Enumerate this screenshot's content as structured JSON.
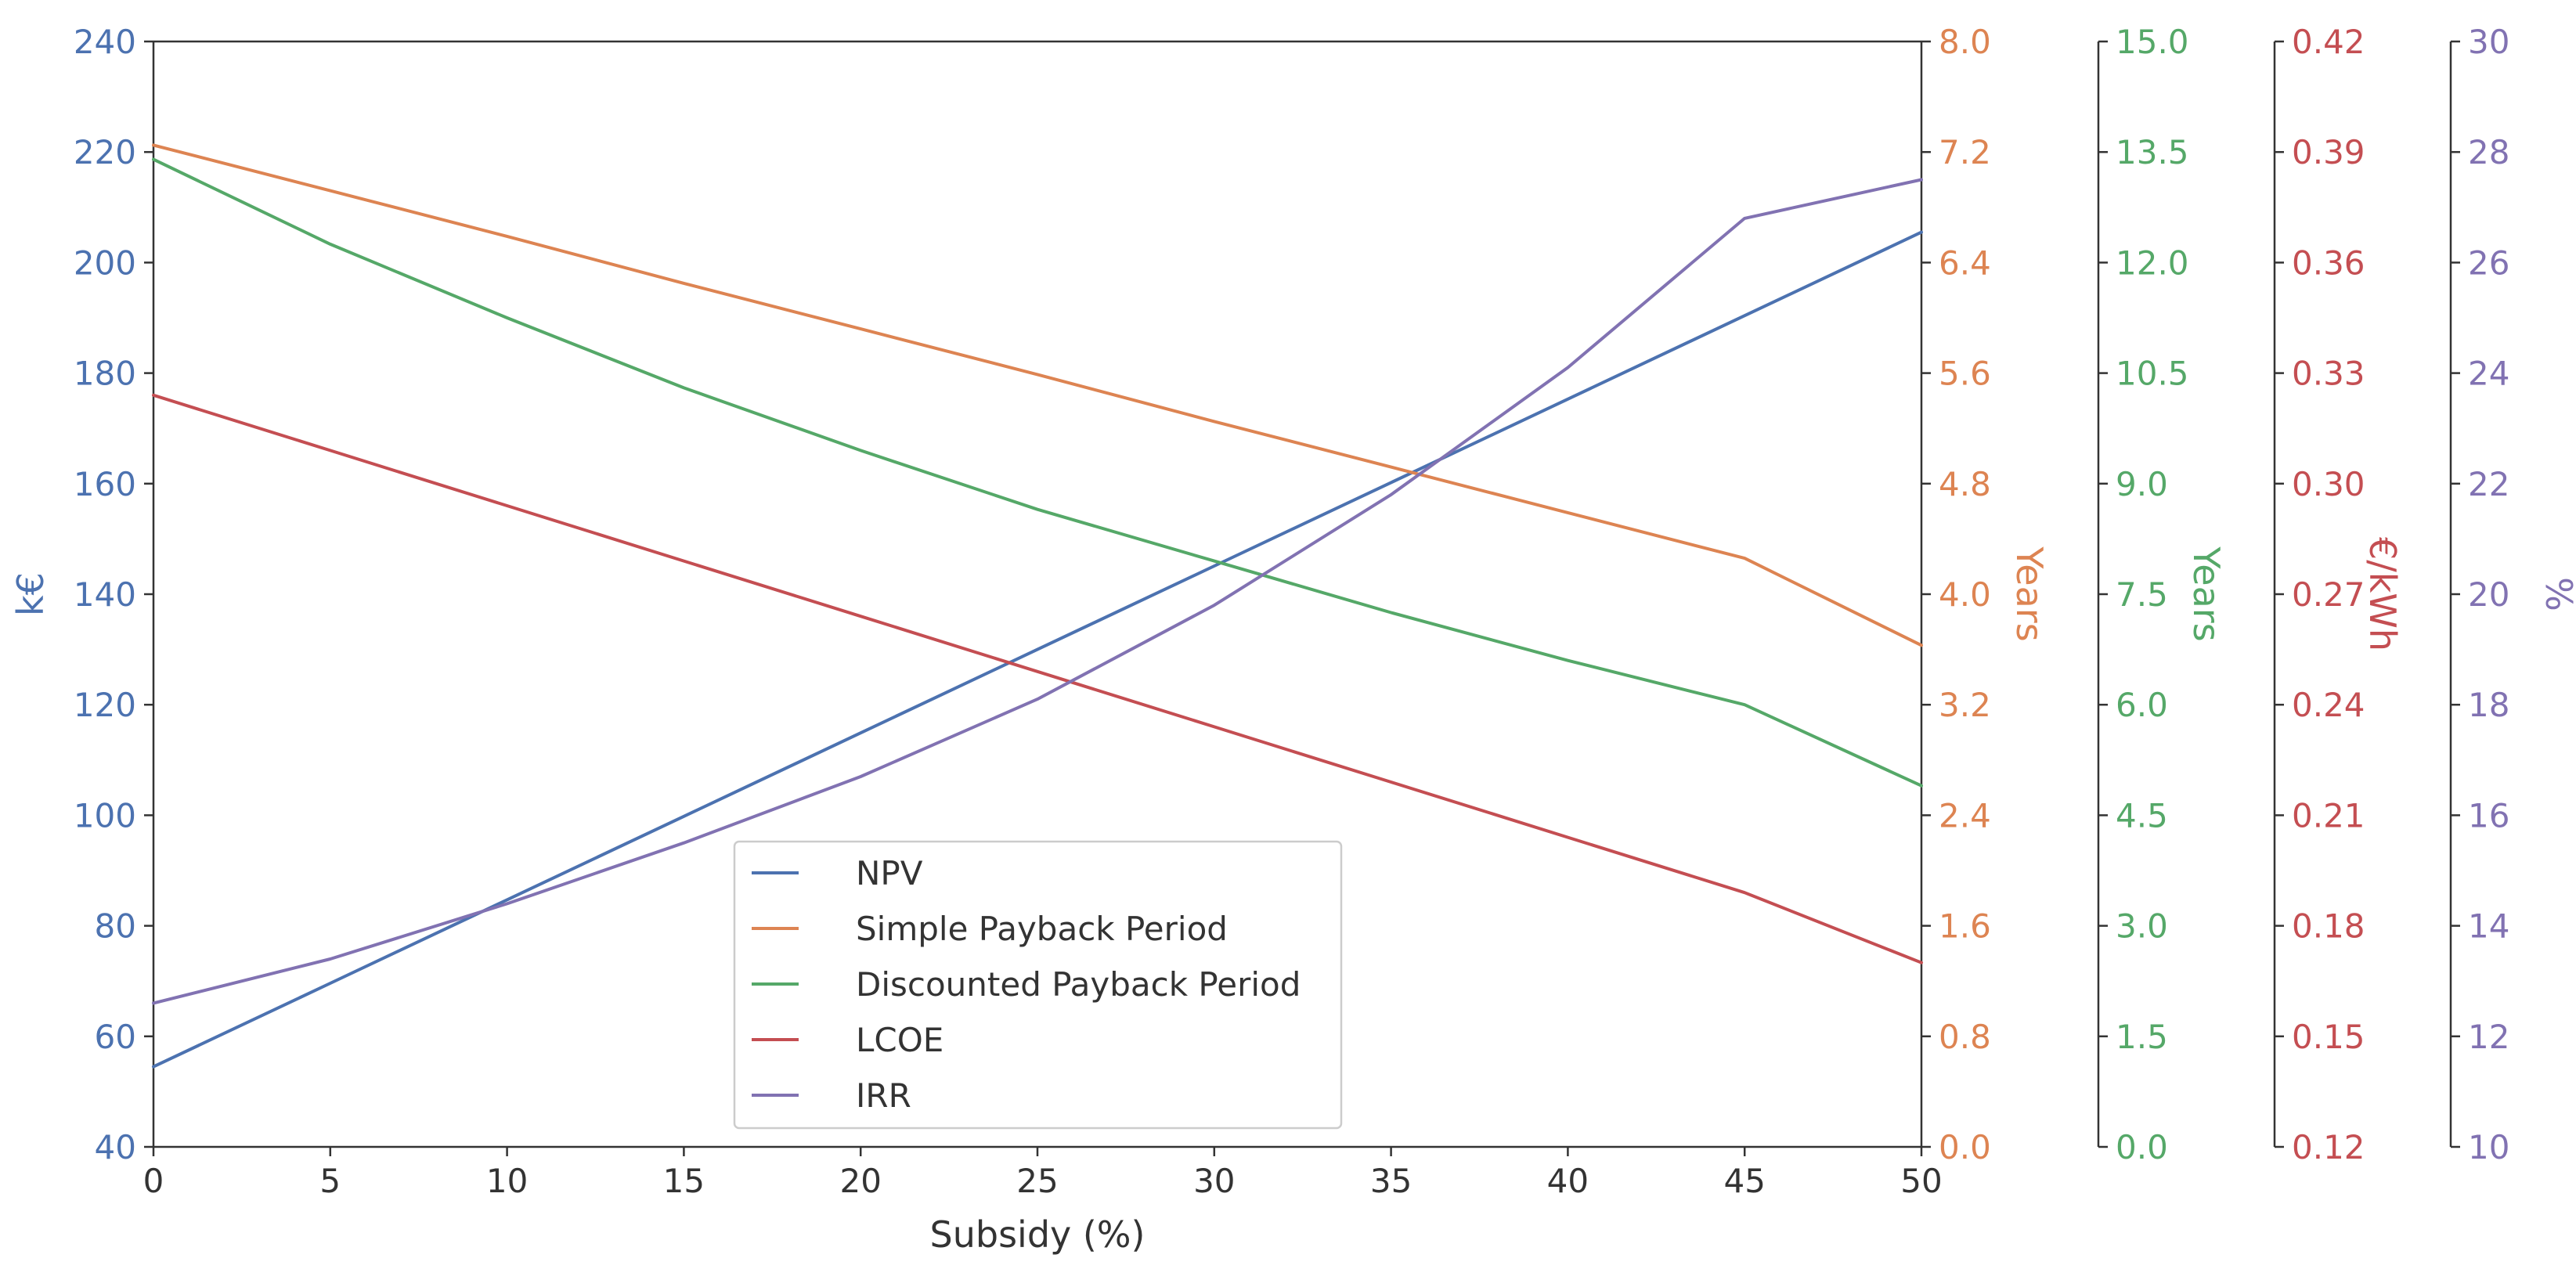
{
  "chart_data": {
    "type": "line",
    "title": "",
    "xlabel": "Subsidy (%)",
    "x": [
      0,
      5,
      10,
      15,
      20,
      25,
      30,
      35,
      40,
      45,
      50
    ],
    "xlim": [
      0,
      50
    ],
    "xticks": [
      0,
      5,
      10,
      15,
      20,
      25,
      30,
      35,
      40,
      45,
      50
    ],
    "grid": false,
    "legend_position": "lower-center",
    "axes": [
      {
        "id": "npv",
        "side": "left",
        "label": "k€",
        "color": "#4c72b0",
        "lim": [
          40,
          240
        ],
        "ticks": [
          "40",
          "60",
          "80",
          "100",
          "120",
          "140",
          "160",
          "180",
          "200",
          "220",
          "240"
        ]
      },
      {
        "id": "spp",
        "side": "right",
        "label": "Years",
        "color": "#dd8452",
        "lim": [
          0,
          8
        ],
        "ticks": [
          "0.0",
          "0.8",
          "1.6",
          "2.4",
          "3.2",
          "4.0",
          "4.8",
          "5.6",
          "6.4",
          "7.2",
          "8.0"
        ]
      },
      {
        "id": "dpp",
        "side": "right",
        "label": "Years",
        "color": "#55a868",
        "lim": [
          0,
          15
        ],
        "ticks": [
          "0.0",
          "1.5",
          "3.0",
          "4.5",
          "6.0",
          "7.5",
          "9.0",
          "10.5",
          "12.0",
          "13.5",
          "15.0"
        ]
      },
      {
        "id": "lcoe",
        "side": "right",
        "label": "€/kWh",
        "color": "#c44e52",
        "lim": [
          0.12,
          0.42
        ],
        "ticks": [
          "0.12",
          "0.15",
          "0.18",
          "0.21",
          "0.24",
          "0.27",
          "0.30",
          "0.33",
          "0.36",
          "0.39",
          "0.42"
        ]
      },
      {
        "id": "irr",
        "side": "right",
        "label": "%",
        "color": "#8172b2",
        "lim": [
          10,
          30
        ],
        "ticks": [
          "10",
          "12",
          "14",
          "16",
          "18",
          "20",
          "22",
          "24",
          "26",
          "28",
          "30"
        ]
      }
    ],
    "series": [
      {
        "name": "NPV",
        "axis": "npv",
        "color": "#4c72b0",
        "values": [
          54.5,
          69.6,
          84.7,
          99.8,
          114.9,
          130.0,
          145.1,
          160.2,
          175.3,
          190.4,
          205.5
        ]
      },
      {
        "name": "Simple Payback Period",
        "axis": "spp",
        "color": "#dd8452",
        "values": [
          7.25,
          6.92,
          6.59,
          6.25,
          5.92,
          5.59,
          5.25,
          4.92,
          4.59,
          4.26,
          3.63
        ]
      },
      {
        "name": "Discounted Payback Period",
        "axis": "dpp",
        "color": "#55a868",
        "values": [
          13.4,
          12.25,
          11.25,
          10.3,
          9.45,
          8.65,
          7.95,
          7.25,
          6.6,
          6.0,
          4.9
        ]
      },
      {
        "name": "LCOE",
        "axis": "lcoe",
        "color": "#c44e52",
        "values": [
          0.324,
          0.309,
          0.294,
          0.279,
          0.264,
          0.249,
          0.234,
          0.219,
          0.204,
          0.189,
          0.17
        ]
      },
      {
        "name": "IRR",
        "axis": "irr",
        "color": "#8172b2",
        "values": [
          12.6,
          13.4,
          14.4,
          15.5,
          16.7,
          18.1,
          19.8,
          21.8,
          24.1,
          26.8,
          27.5
        ]
      }
    ]
  }
}
